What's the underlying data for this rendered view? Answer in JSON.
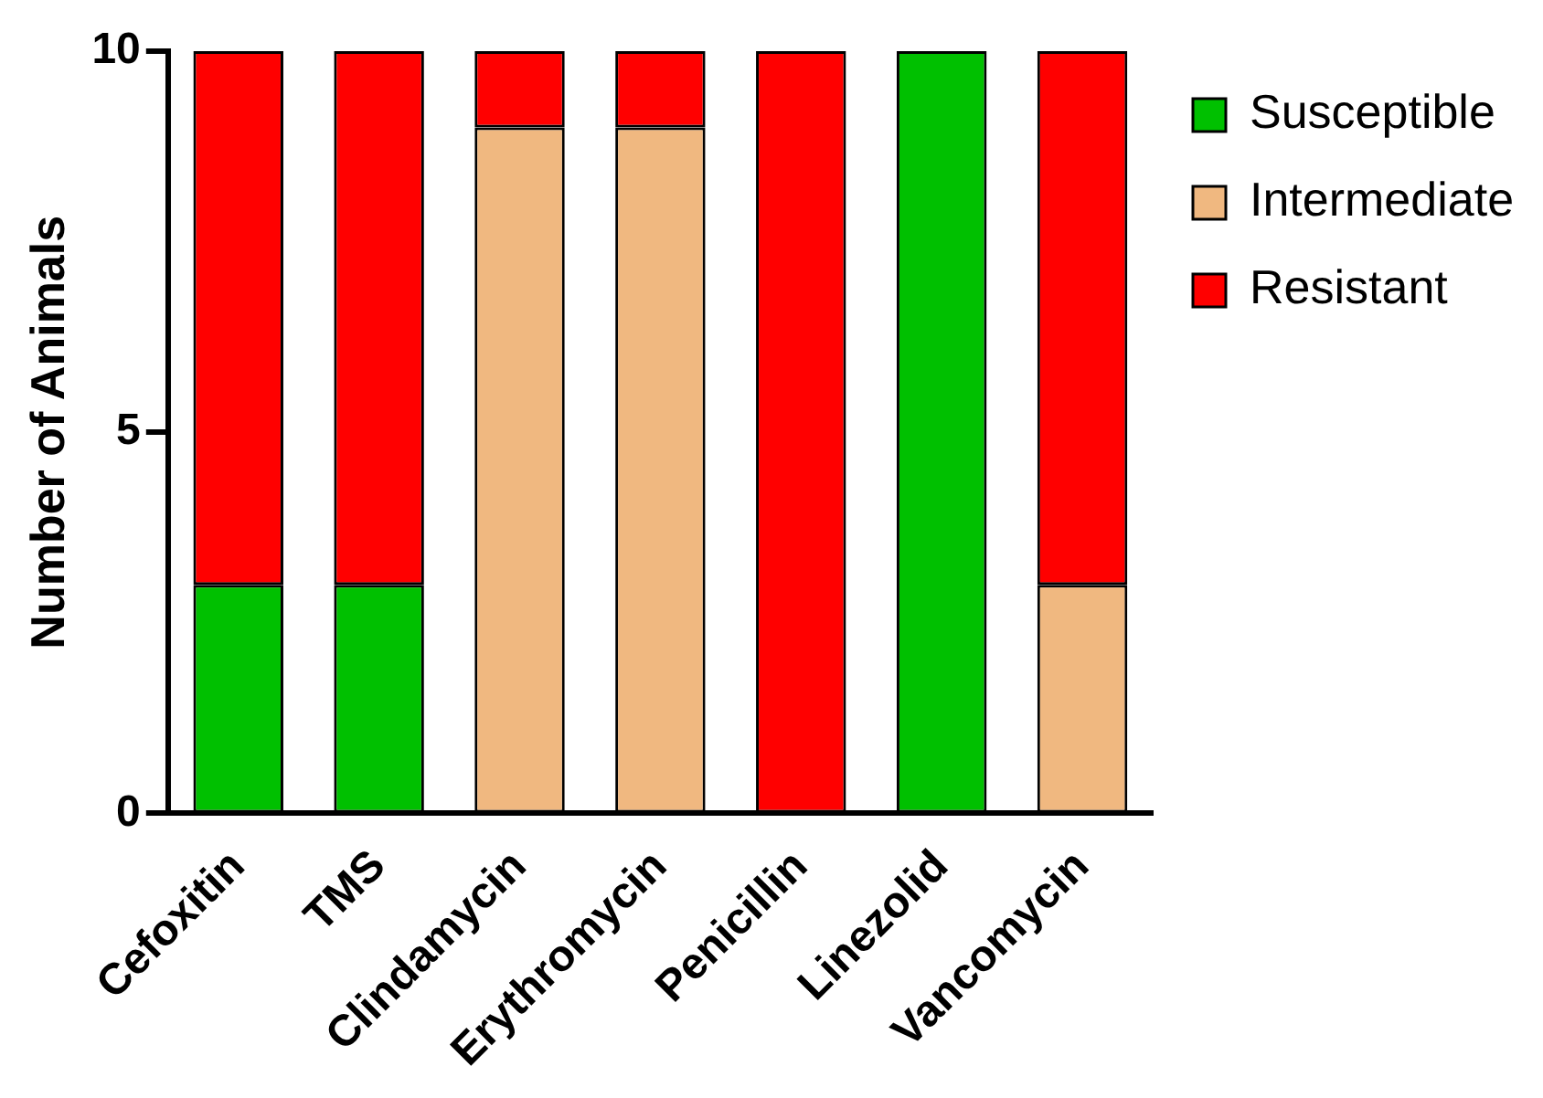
{
  "chart_data": {
    "type": "bar",
    "ylabel": "Number of Animals",
    "categories": [
      "Cefoxitin",
      "TMS",
      "Clindamycin",
      "Erythromycin",
      "Penicillin",
      "Linezolid",
      "Vancomycin"
    ],
    "stacked": true,
    "ylim": [
      0,
      10
    ],
    "yticks": [
      0,
      5,
      10
    ],
    "grid": false,
    "legend": "top right",
    "series": [
      {
        "name": "Susceptible",
        "color": "#00c000",
        "values": [
          3,
          3,
          0,
          0,
          0,
          10,
          0
        ]
      },
      {
        "name": "Intermediate",
        "color": "#f0b880",
        "values": [
          0,
          0,
          9,
          9,
          0,
          0,
          3
        ]
      },
      {
        "name": "Resistant",
        "color": "#ff0000",
        "values": [
          7,
          7,
          1,
          1,
          10,
          0,
          7
        ]
      }
    ]
  }
}
